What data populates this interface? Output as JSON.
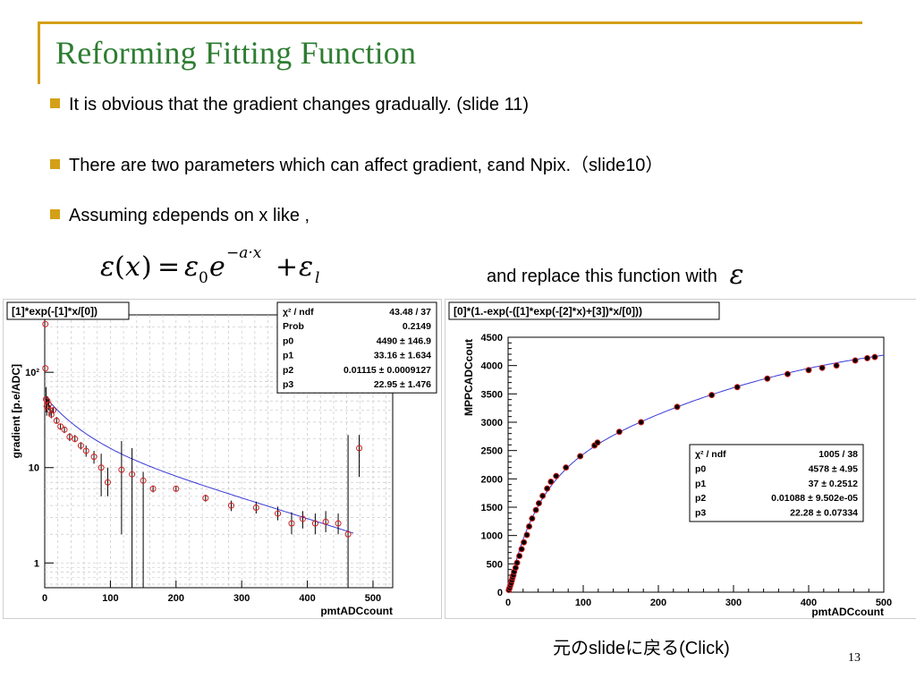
{
  "slide": {
    "title": "Reforming Fitting Function",
    "bullets": [
      "It is obvious that the gradient changes gradually. (slide 11)",
      "There are two parameters which can affect gradient, εand Npix.（slide10）",
      "Assuming εdepends on x like ,"
    ],
    "formula": "ε(x) = ε0 e^(−a·x) + εl",
    "replace_text": "and replace this function with",
    "replace_symbol": "ε",
    "caption": "元のslideに戻る(Click)",
    "page_number": "13"
  },
  "chart_data": [
    {
      "type": "scatter",
      "function_label": "[1]*exp(-[1]*x/[0])",
      "xlabel": "pmtADCcount",
      "ylabel": "gradient [p.e/ADC]",
      "log_y": true,
      "grid": true,
      "xlim": [
        0,
        530
      ],
      "ylim": [
        0.55,
        400
      ],
      "x_ticks": [
        0,
        100,
        200,
        300,
        400,
        500
      ],
      "y_ticks": [
        {
          "v": 1,
          "label": "1"
        },
        {
          "v": 10,
          "label": "10"
        },
        {
          "v": 100,
          "label": "10²"
        }
      ],
      "stats": [
        {
          "label": "χ² / ndf",
          "value": "43.48 / 37"
        },
        {
          "label": "Prob",
          "value": "0.2149"
        },
        {
          "label": "p0",
          "value": "4490 ± 146.9"
        },
        {
          "label": "p1",
          "value": "33.16 ± 1.634"
        },
        {
          "label": "p2",
          "value": "0.01115 ± 0.0009127"
        },
        {
          "label": "p3",
          "value": "22.95 ± 1.476"
        }
      ],
      "fit": {
        "p0": 4490,
        "p1": 33.16,
        "p2": 0.01115,
        "p3": 22.95
      },
      "series": [
        {
          "points": [
            {
              "x": 1,
              "y": 320,
              "lo": 320,
              "hi": 320
            },
            {
              "x": 1,
              "y": 110,
              "lo": 110,
              "hi": 110
            },
            {
              "x": 2,
              "y": 52,
              "lo": 38,
              "hi": 70
            },
            {
              "x": 3,
              "y": 44,
              "lo": 35,
              "hi": 52
            },
            {
              "x": 4,
              "y": 50,
              "lo": 44,
              "hi": 56
            },
            {
              "x": 6,
              "y": 46,
              "lo": 40,
              "hi": 52
            },
            {
              "x": 8,
              "y": 40,
              "lo": 35,
              "hi": 45
            },
            {
              "x": 10,
              "y": 36,
              "lo": 33,
              "hi": 40
            },
            {
              "x": 13,
              "y": 40,
              "lo": 37,
              "hi": 43
            },
            {
              "x": 18,
              "y": 31,
              "lo": 29,
              "hi": 34
            },
            {
              "x": 24,
              "y": 27,
              "lo": 25,
              "hi": 29
            },
            {
              "x": 30,
              "y": 25,
              "lo": 23,
              "hi": 27
            },
            {
              "x": 38,
              "y": 21,
              "lo": 19,
              "hi": 23
            },
            {
              "x": 46,
              "y": 20,
              "lo": 18.5,
              "hi": 22
            },
            {
              "x": 55,
              "y": 17,
              "lo": 15.5,
              "hi": 18.5
            },
            {
              "x": 63,
              "y": 15,
              "lo": 13,
              "hi": 17
            },
            {
              "x": 75,
              "y": 13,
              "lo": 11,
              "hi": 15
            },
            {
              "x": 86,
              "y": 10,
              "lo": 5,
              "hi": 14
            },
            {
              "x": 96,
              "y": 7,
              "lo": 5,
              "hi": 10
            },
            {
              "x": 117,
              "y": 9.5,
              "lo": 2,
              "hi": 19
            },
            {
              "x": 133,
              "y": 8.5,
              "lo": 0.55,
              "hi": 16
            },
            {
              "x": 150,
              "y": 7.3,
              "lo": 0.55,
              "hi": 9
            },
            {
              "x": 165,
              "y": 6,
              "lo": 5.5,
              "hi": 6.5
            },
            {
              "x": 200,
              "y": 6,
              "lo": 5.6,
              "hi": 6.4
            },
            {
              "x": 245,
              "y": 4.8,
              "lo": 4.4,
              "hi": 5.2
            },
            {
              "x": 284,
              "y": 4,
              "lo": 3.5,
              "hi": 4.5
            },
            {
              "x": 322,
              "y": 3.8,
              "lo": 3.3,
              "hi": 4.4
            },
            {
              "x": 355,
              "y": 3.3,
              "lo": 2.8,
              "hi": 3.9
            },
            {
              "x": 376,
              "y": 2.6,
              "lo": 2,
              "hi": 3.4
            },
            {
              "x": 393,
              "y": 2.9,
              "lo": 2.3,
              "hi": 3.5
            },
            {
              "x": 412,
              "y": 2.6,
              "lo": 2,
              "hi": 3.3
            },
            {
              "x": 428,
              "y": 2.7,
              "lo": 2.1,
              "hi": 3.5
            },
            {
              "x": 447,
              "y": 2.6,
              "lo": 2,
              "hi": 3.3
            },
            {
              "x": 462,
              "y": 2,
              "lo": 0.55,
              "hi": 22
            },
            {
              "x": 479,
              "y": 16,
              "lo": 8,
              "hi": 22
            }
          ]
        }
      ]
    },
    {
      "type": "scatter",
      "function_label": "[0]*(1.-exp(-([1]*exp(-[2]*x)+[3])*x/[0]))",
      "xlabel": "pmtADCcount",
      "ylabel": "MPPCADCcout",
      "log_y": false,
      "grid": false,
      "xlim": [
        0,
        500
      ],
      "ylim": [
        0,
        4500
      ],
      "x_ticks": [
        0,
        100,
        200,
        300,
        400,
        500
      ],
      "y_ticks": [
        0,
        500,
        1000,
        1500,
        2000,
        2500,
        3000,
        3500,
        4000,
        4500
      ],
      "stats": [
        {
          "label": "χ² / ndf",
          "value": "1005 / 38"
        },
        {
          "label": "p0",
          "value": "4578 ±  4.95"
        },
        {
          "label": "p1",
          "value": "37 ± 0.2512"
        },
        {
          "label": "p2",
          "value": "0.01088 ± 9.502e-05"
        },
        {
          "label": "p3",
          "value": "22.28 ± 0.07334"
        }
      ],
      "fit": {
        "p0": 4578,
        "p1": 37,
        "p2": 0.01088,
        "p3": 22.28
      },
      "series": [
        {
          "points": [
            {
              "x": 1,
              "y": 40
            },
            {
              "x": 2,
              "y": 75
            },
            {
              "x": 3,
              "y": 120
            },
            {
              "x": 4,
              "y": 160
            },
            {
              "x": 5,
              "y": 210
            },
            {
              "x": 6,
              "y": 260
            },
            {
              "x": 7,
              "y": 300
            },
            {
              "x": 8,
              "y": 360
            },
            {
              "x": 10,
              "y": 430
            },
            {
              "x": 12,
              "y": 520
            },
            {
              "x": 15,
              "y": 640
            },
            {
              "x": 18,
              "y": 760
            },
            {
              "x": 21,
              "y": 880
            },
            {
              "x": 25,
              "y": 1010
            },
            {
              "x": 28,
              "y": 1160
            },
            {
              "x": 32,
              "y": 1300
            },
            {
              "x": 37,
              "y": 1450
            },
            {
              "x": 41,
              "y": 1570
            },
            {
              "x": 46,
              "y": 1700
            },
            {
              "x": 52,
              "y": 1830
            },
            {
              "x": 57,
              "y": 1950
            },
            {
              "x": 64,
              "y": 2050
            },
            {
              "x": 77,
              "y": 2200
            },
            {
              "x": 96,
              "y": 2400
            },
            {
              "x": 115,
              "y": 2590
            },
            {
              "x": 119,
              "y": 2640
            },
            {
              "x": 148,
              "y": 2830
            },
            {
              "x": 177,
              "y": 3000
            },
            {
              "x": 225,
              "y": 3270
            },
            {
              "x": 271,
              "y": 3480
            },
            {
              "x": 305,
              "y": 3620
            },
            {
              "x": 345,
              "y": 3770
            },
            {
              "x": 372,
              "y": 3850
            },
            {
              "x": 400,
              "y": 3920
            },
            {
              "x": 418,
              "y": 3960
            },
            {
              "x": 437,
              "y": 4000
            },
            {
              "x": 462,
              "y": 4090
            },
            {
              "x": 478,
              "y": 4130
            },
            {
              "x": 488,
              "y": 4150
            }
          ]
        }
      ]
    }
  ]
}
